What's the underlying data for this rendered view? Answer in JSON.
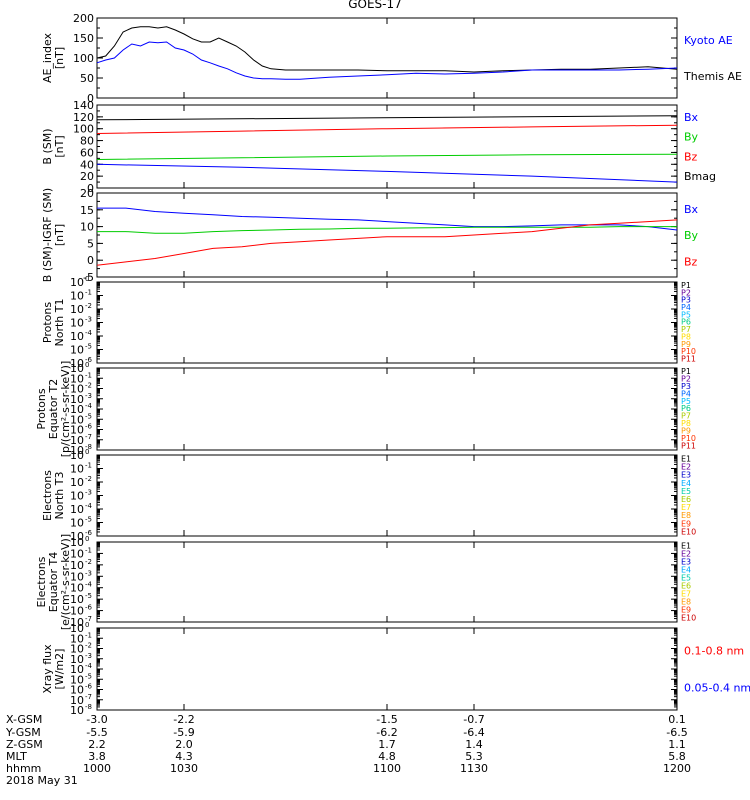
{
  "title": "GOES-17",
  "chart_data": [
    {
      "type": "line",
      "panel": "ae",
      "ylabel_lines": [
        "AE_index",
        "[nT]"
      ],
      "ylim": [
        0,
        200
      ],
      "yticks": [
        {
          "v": 0,
          "label": "0"
        },
        {
          "v": 50,
          "label": "50"
        },
        {
          "v": 100,
          "label": "100"
        },
        {
          "v": 150,
          "label": "150"
        },
        {
          "v": 200,
          "label": "200"
        }
      ],
      "legend": [
        {
          "label": "Kyoto AE",
          "color": "#0000ff"
        },
        {
          "label": "Themis AE",
          "color": "#000000"
        }
      ],
      "series": [
        {
          "color": "#000000",
          "x": [
            1000,
            1003,
            1006,
            1009,
            1012,
            1015,
            1018,
            1021,
            1024,
            1027,
            1030,
            1033,
            1036,
            1039,
            1042,
            1045,
            1048,
            1051,
            1054,
            1057,
            1060,
            1065,
            1070,
            1080,
            1090,
            1100,
            1110,
            1120,
            1130,
            1140,
            1150,
            1160,
            1170,
            1180,
            1190,
            1200
          ],
          "y": [
            100,
            105,
            130,
            165,
            175,
            178,
            178,
            175,
            178,
            170,
            160,
            148,
            140,
            140,
            150,
            140,
            130,
            115,
            95,
            80,
            73,
            70,
            70,
            70,
            70,
            68,
            68,
            68,
            65,
            68,
            70,
            72,
            72,
            75,
            78,
            72
          ]
        },
        {
          "color": "#0000ff",
          "x": [
            1000,
            1003,
            1006,
            1009,
            1012,
            1015,
            1018,
            1021,
            1024,
            1027,
            1030,
            1033,
            1036,
            1039,
            1042,
            1045,
            1048,
            1051,
            1054,
            1057,
            1060,
            1065,
            1070,
            1080,
            1090,
            1100,
            1110,
            1120,
            1130,
            1140,
            1150,
            1160,
            1170,
            1180,
            1190,
            1200
          ],
          "y": [
            88,
            95,
            100,
            120,
            135,
            130,
            140,
            138,
            140,
            125,
            120,
            110,
            95,
            88,
            80,
            73,
            63,
            55,
            50,
            48,
            48,
            47,
            47,
            52,
            55,
            58,
            62,
            60,
            62,
            65,
            70,
            70,
            70,
            70,
            72,
            75
          ]
        }
      ]
    },
    {
      "type": "line",
      "panel": "b_sm",
      "ylabel_lines": [
        "B (SM)",
        "[nT]"
      ],
      "ylim": [
        0,
        140
      ],
      "yticks": [
        {
          "v": 0,
          "label": "0"
        },
        {
          "v": 20,
          "label": "20"
        },
        {
          "v": 40,
          "label": "40"
        },
        {
          "v": 60,
          "label": "60"
        },
        {
          "v": 80,
          "label": "80"
        },
        {
          "v": 100,
          "label": "100"
        },
        {
          "v": 120,
          "label": "120"
        },
        {
          "v": 140,
          "label": "140"
        }
      ],
      "legend": [
        {
          "label": "Bx",
          "color": "#0000ff"
        },
        {
          "label": "By",
          "color": "#00cc00"
        },
        {
          "label": "Bz",
          "color": "#ff0000"
        },
        {
          "label": "Bmag",
          "color": "#000000"
        }
      ],
      "series": [
        {
          "color": "#000000",
          "x": [
            1000,
            1200
          ],
          "y": [
            115,
            122
          ]
        },
        {
          "color": "#ff0000",
          "x": [
            1000,
            1050,
            1100,
            1150,
            1200
          ],
          "y": [
            92,
            96,
            100,
            103,
            106
          ]
        },
        {
          "color": "#00cc00",
          "x": [
            1000,
            1050,
            1100,
            1150,
            1200
          ],
          "y": [
            48,
            51,
            54,
            56,
            57
          ]
        },
        {
          "color": "#0000ff",
          "x": [
            1000,
            1050,
            1100,
            1150,
            1200
          ],
          "y": [
            40,
            35,
            28,
            20,
            10
          ]
        }
      ]
    },
    {
      "type": "line",
      "panel": "b_igrf",
      "ylabel_lines": [
        "B (SM)-IGRF (SM)",
        "[nT]"
      ],
      "ylim": [
        -5,
        20
      ],
      "yticks": [
        {
          "v": -5,
          "label": "-5"
        },
        {
          "v": 0,
          "label": "0"
        },
        {
          "v": 5,
          "label": "5"
        },
        {
          "v": 10,
          "label": "10"
        },
        {
          "v": 15,
          "label": "15"
        },
        {
          "v": 20,
          "label": "20"
        }
      ],
      "legend": [
        {
          "label": "Bx",
          "color": "#0000ff"
        },
        {
          "label": "By",
          "color": "#00cc00"
        },
        {
          "label": "Bz",
          "color": "#ff0000"
        }
      ],
      "series": [
        {
          "color": "#0000ff",
          "x": [
            1000,
            1010,
            1020,
            1030,
            1040,
            1050,
            1060,
            1070,
            1080,
            1090,
            1100,
            1110,
            1120,
            1130,
            1140,
            1150,
            1160,
            1170,
            1180,
            1190,
            1200
          ],
          "y": [
            15.5,
            15.5,
            14.5,
            14,
            13.5,
            13,
            12.8,
            12.5,
            12.2,
            12,
            11.5,
            11,
            10.5,
            10,
            10,
            10.2,
            10.5,
            10.5,
            10.5,
            10,
            9
          ]
        },
        {
          "color": "#00cc00",
          "x": [
            1000,
            1010,
            1020,
            1030,
            1040,
            1050,
            1060,
            1070,
            1080,
            1090,
            1100,
            1110,
            1120,
            1130,
            1140,
            1150,
            1160,
            1170,
            1180,
            1190,
            1200
          ],
          "y": [
            8.5,
            8.5,
            8,
            8,
            8.5,
            8.8,
            9,
            9.2,
            9.3,
            9.5,
            9.5,
            9.6,
            9.7,
            9.8,
            9.8,
            9.8,
            9.8,
            9.8,
            10,
            10,
            10
          ]
        },
        {
          "color": "#ff0000",
          "x": [
            1000,
            1010,
            1020,
            1030,
            1040,
            1050,
            1060,
            1070,
            1080,
            1090,
            1100,
            1110,
            1120,
            1130,
            1140,
            1150,
            1160,
            1170,
            1180,
            1190,
            1200
          ],
          "y": [
            -1.5,
            -0.5,
            0.5,
            2,
            3.5,
            4,
            5,
            5.5,
            6,
            6.5,
            7,
            7,
            7,
            7.5,
            8,
            8.5,
            9.5,
            10.5,
            11,
            11.5,
            12
          ]
        }
      ]
    },
    {
      "type": "line",
      "panel": "protons_north",
      "ylabel_lines": [
        "Protons",
        "North T1"
      ],
      "ylog": true,
      "ylim": [
        1e-06,
        1
      ],
      "yticks": [
        {
          "v": 1,
          "base": "10",
          "exp": "0"
        },
        {
          "v": 0.1,
          "base": "10",
          "exp": "-1"
        },
        {
          "v": 0.01,
          "base": "10",
          "exp": "-2"
        },
        {
          "v": 0.001,
          "base": "10",
          "exp": "-3"
        },
        {
          "v": 0.0001,
          "base": "10",
          "exp": "-4"
        },
        {
          "v": 1e-05,
          "base": "10",
          "exp": "-5"
        },
        {
          "v": 1e-06,
          "base": "10",
          "exp": "-6"
        }
      ],
      "channels": [
        {
          "label": "P1",
          "color": "#000000"
        },
        {
          "label": "P2",
          "color": "#660099"
        },
        {
          "label": "P3",
          "color": "#0000cc"
        },
        {
          "label": "P4",
          "color": "#0066ff"
        },
        {
          "label": "P5",
          "color": "#00bbff"
        },
        {
          "label": "P6",
          "color": "#00cc88"
        },
        {
          "label": "P7",
          "color": "#aacc00"
        },
        {
          "label": "P8",
          "color": "#ffdd00"
        },
        {
          "label": "P9",
          "color": "#ff9900"
        },
        {
          "label": "P10",
          "color": "#ff3300"
        },
        {
          "label": "P11",
          "color": "#cc0000"
        }
      ],
      "series": []
    },
    {
      "type": "line",
      "panel": "protons_equator",
      "ylabel_lines": [
        "Protons",
        "Equator T2",
        "[p/(cm²-s-sr-keV)]"
      ],
      "ylog": true,
      "ylim": [
        1e-08,
        1
      ],
      "yticks": [
        {
          "v": 1,
          "base": "10",
          "exp": "0"
        },
        {
          "v": 0.1,
          "base": "10",
          "exp": "-1"
        },
        {
          "v": 0.01,
          "base": "10",
          "exp": "-2"
        },
        {
          "v": 0.001,
          "base": "10",
          "exp": "-3"
        },
        {
          "v": 0.0001,
          "base": "10",
          "exp": "-4"
        },
        {
          "v": 1e-05,
          "base": "10",
          "exp": "-5"
        },
        {
          "v": 1e-06,
          "base": "10",
          "exp": "-6"
        },
        {
          "v": 1e-07,
          "base": "10",
          "exp": "-7"
        },
        {
          "v": 1e-08,
          "base": "10",
          "exp": "-8"
        }
      ],
      "channels": [
        {
          "label": "P1",
          "color": "#000000"
        },
        {
          "label": "P2",
          "color": "#660099"
        },
        {
          "label": "P3",
          "color": "#0000cc"
        },
        {
          "label": "P4",
          "color": "#0066ff"
        },
        {
          "label": "P5",
          "color": "#00bbff"
        },
        {
          "label": "P6",
          "color": "#00cc88"
        },
        {
          "label": "P7",
          "color": "#aacc00"
        },
        {
          "label": "P8",
          "color": "#ffdd00"
        },
        {
          "label": "P9",
          "color": "#ff9900"
        },
        {
          "label": "P10",
          "color": "#ff3300"
        },
        {
          "label": "P11",
          "color": "#cc0000"
        }
      ],
      "series": []
    },
    {
      "type": "line",
      "panel": "electrons_north",
      "ylabel_lines": [
        "Electrons",
        "North T3"
      ],
      "ylog": true,
      "ylim": [
        1e-06,
        1
      ],
      "yticks": [
        {
          "v": 1,
          "base": "10",
          "exp": "0"
        },
        {
          "v": 0.1,
          "base": "10",
          "exp": "-1"
        },
        {
          "v": 0.01,
          "base": "10",
          "exp": "-2"
        },
        {
          "v": 0.001,
          "base": "10",
          "exp": "-3"
        },
        {
          "v": 0.0001,
          "base": "10",
          "exp": "-4"
        },
        {
          "v": 1e-05,
          "base": "10",
          "exp": "-5"
        },
        {
          "v": 1e-06,
          "base": "10",
          "exp": "-6"
        }
      ],
      "channels": [
        {
          "label": "E1",
          "color": "#000000"
        },
        {
          "label": "E2",
          "color": "#660099"
        },
        {
          "label": "E3",
          "color": "#0000cc"
        },
        {
          "label": "E4",
          "color": "#00aaff"
        },
        {
          "label": "E5",
          "color": "#00ccaa"
        },
        {
          "label": "E6",
          "color": "#aacc00"
        },
        {
          "label": "E7",
          "color": "#ffdd00"
        },
        {
          "label": "E8",
          "color": "#ff9900"
        },
        {
          "label": "E9",
          "color": "#ff3300"
        },
        {
          "label": "E10",
          "color": "#cc0000"
        }
      ],
      "series": []
    },
    {
      "type": "line",
      "panel": "electrons_equator",
      "ylabel_lines": [
        "Electrons",
        "Equator T4",
        "[e/(cm²-s-sr-keV)]"
      ],
      "ylog": true,
      "ylim": [
        1e-07,
        1
      ],
      "yticks": [
        {
          "v": 1,
          "base": "10",
          "exp": "0"
        },
        {
          "v": 0.1,
          "base": "10",
          "exp": "-1"
        },
        {
          "v": 0.01,
          "base": "10",
          "exp": "-2"
        },
        {
          "v": 0.001,
          "base": "10",
          "exp": "-3"
        },
        {
          "v": 0.0001,
          "base": "10",
          "exp": "-4"
        },
        {
          "v": 1e-05,
          "base": "10",
          "exp": "-5"
        },
        {
          "v": 1e-06,
          "base": "10",
          "exp": "-6"
        },
        {
          "v": 1e-07,
          "base": "10",
          "exp": "-7"
        }
      ],
      "channels": [
        {
          "label": "E1",
          "color": "#000000"
        },
        {
          "label": "E2",
          "color": "#660099"
        },
        {
          "label": "E3",
          "color": "#0000cc"
        },
        {
          "label": "E4",
          "color": "#00aaff"
        },
        {
          "label": "E5",
          "color": "#00ccaa"
        },
        {
          "label": "E6",
          "color": "#aacc00"
        },
        {
          "label": "E7",
          "color": "#ffdd00"
        },
        {
          "label": "E8",
          "color": "#ff9900"
        },
        {
          "label": "E9",
          "color": "#ff3300"
        },
        {
          "label": "E10",
          "color": "#cc0000"
        }
      ],
      "series": []
    },
    {
      "type": "line",
      "panel": "xray",
      "ylabel_lines": [
        "Xray flux",
        "[W/m2]"
      ],
      "ylog": true,
      "ylim": [
        1e-08,
        1
      ],
      "yticks": [
        {
          "v": 1,
          "base": "10",
          "exp": "0"
        },
        {
          "v": 0.1,
          "base": "10",
          "exp": "-1"
        },
        {
          "v": 0.01,
          "base": "10",
          "exp": "-2"
        },
        {
          "v": 0.001,
          "base": "10",
          "exp": "-3"
        },
        {
          "v": 0.0001,
          "base": "10",
          "exp": "-4"
        },
        {
          "v": 1e-05,
          "base": "10",
          "exp": "-5"
        },
        {
          "v": 1e-06,
          "base": "10",
          "exp": "-6"
        },
        {
          "v": 1e-07,
          "base": "10",
          "exp": "-7"
        },
        {
          "v": 1e-08,
          "base": "10",
          "exp": "-8"
        }
      ],
      "legend": [
        {
          "label": "0.1-0.8 nm",
          "color": "#ff0000"
        },
        {
          "label": "0.05-0.4 nm",
          "color": "#0000ff"
        }
      ],
      "series": []
    }
  ],
  "xaxis": {
    "range": [
      1000,
      1200
    ],
    "ticks": [
      1000,
      1030,
      1100,
      1130,
      1200
    ],
    "rows": [
      {
        "label": "X-GSM",
        "values": [
          "-3.0",
          "-2.2",
          "-1.5",
          "-0.7",
          "0.1"
        ]
      },
      {
        "label": "Y-GSM",
        "values": [
          "-5.5",
          "-5.9",
          "-6.2",
          "-6.4",
          "-6.5"
        ]
      },
      {
        "label": "Z-GSM",
        "values": [
          "2.2",
          "2.0",
          "1.7",
          "1.4",
          "1.1"
        ]
      },
      {
        "label": "MLT",
        "values": [
          "3.8",
          "4.3",
          "4.8",
          "5.3",
          "5.8"
        ]
      },
      {
        "label": "hhmm",
        "values": [
          "1000",
          "1030",
          "1100",
          "1130",
          "1200"
        ]
      }
    ],
    "date": "2018 May 31"
  }
}
